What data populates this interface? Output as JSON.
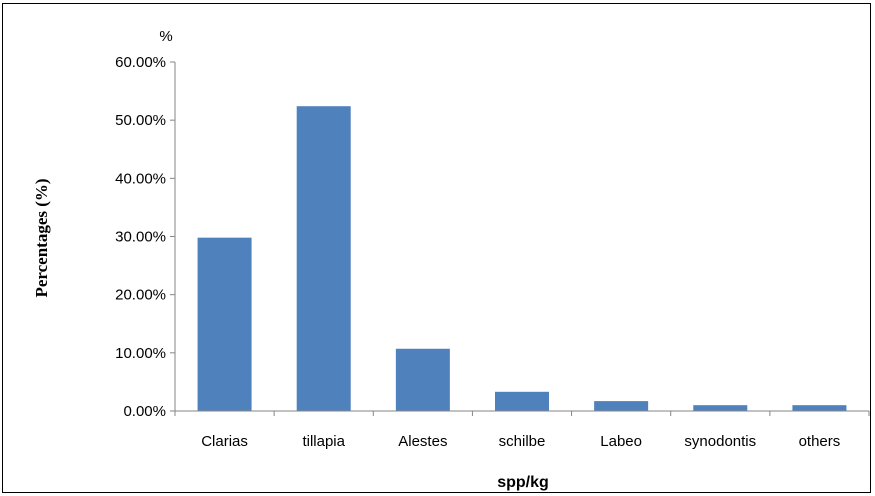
{
  "chart_data": {
    "type": "bar",
    "categories": [
      "Clarias",
      "tillapia",
      "Alestes",
      "schilbe",
      "Labeo",
      "synodontis",
      "others"
    ],
    "values": [
      0.298,
      0.524,
      0.107,
      0.033,
      0.017,
      0.01,
      0.01
    ],
    "ylim": [
      0,
      0.6
    ],
    "ytick_values": [
      0,
      0.1,
      0.2,
      0.3,
      0.4,
      0.5,
      0.6
    ],
    "ytick_labels": [
      "0.00%",
      "10.00%",
      "20.00%",
      "30.00%",
      "40.00%",
      "50.00%",
      "60.00%"
    ],
    "y_unit_label": "%",
    "xlabel": "spp/kg",
    "ylabel": "Percentages (%)",
    "grid": false,
    "legend": "none",
    "bar_color": "#4F81BD"
  }
}
